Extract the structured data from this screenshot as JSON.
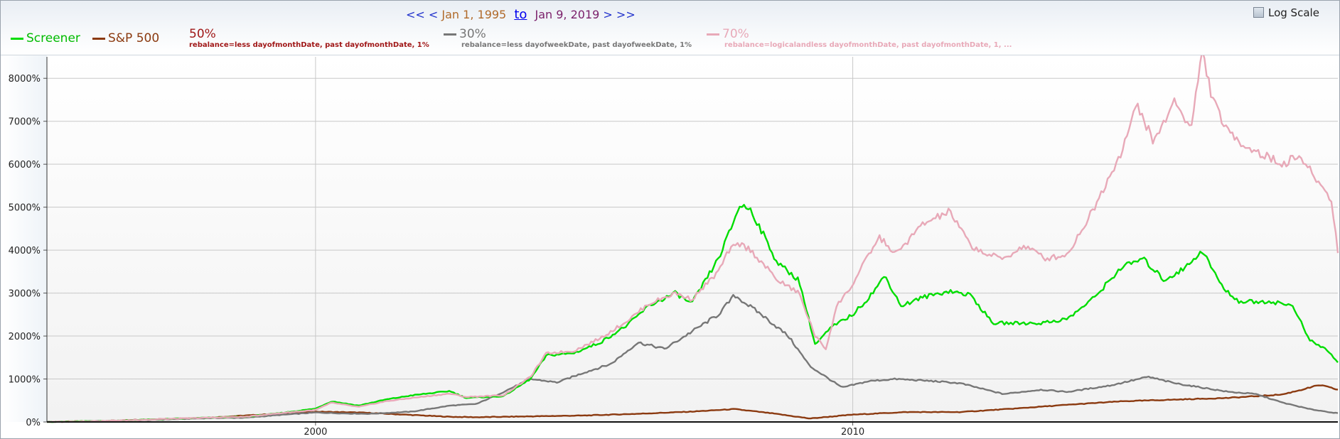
{
  "header": {
    "nav_prev_far": "<<",
    "nav_prev": "<",
    "start_date": "Jan 1, 1995",
    "to_label": "to",
    "end_date": "Jan 9, 2019",
    "nav_next": ">",
    "nav_next_far": ">>",
    "log_scale_label": "Log Scale",
    "log_scale_checked": false
  },
  "legend": [
    {
      "name": "Screener",
      "color": "#00dd00"
    },
    {
      "name": "S&P 500",
      "color": "#8b3a10"
    },
    {
      "name": "50%",
      "desc": "rebalance=less dayofmonthDate, past dayofmonthDate, 1%",
      "color": "#a01818"
    },
    {
      "name": "30%",
      "desc": "rebalance=less dayofweekDate, past dayofweekDate, 1%",
      "color": "#777777"
    },
    {
      "name": "70%",
      "desc": "rebalance=logicalandless dayofmonthDate, past dayofmonthDate, 1, ...",
      "color": "#e8a9b8"
    }
  ],
  "chart_data": {
    "type": "line",
    "xlim": [
      1995.0,
      2019.03
    ],
    "ylim": [
      0,
      8500
    ],
    "y_ticks": [
      "0%",
      "1000%",
      "2000%",
      "3000%",
      "4000%",
      "5000%",
      "6000%",
      "7000%",
      "8000%"
    ],
    "y_tick_values": [
      0,
      1000,
      2000,
      3000,
      4000,
      5000,
      6000,
      7000,
      8000
    ],
    "x_ticks": [
      "2000",
      "2010"
    ],
    "x_tick_values": [
      2000,
      2010
    ],
    "log_scale": false,
    "grid": true,
    "series": [
      {
        "name": "S&P 500",
        "color": "#8b3a10",
        "x": [
          1995.0,
          1996.0,
          1997.0,
          1998.0,
          1999.0,
          2000.0,
          2000.8,
          2001.5,
          2002.5,
          2003.0,
          2004.0,
          2005.0,
          2006.0,
          2007.0,
          2007.8,
          2008.5,
          2009.2,
          2010.0,
          2011.0,
          2012.0,
          2013.0,
          2014.0,
          2015.0,
          2016.0,
          2017.0,
          2018.0,
          2018.7,
          2019.03
        ],
        "y": [
          0,
          20,
          60,
          100,
          170,
          240,
          220,
          180,
          120,
          110,
          130,
          150,
          190,
          240,
          300,
          200,
          80,
          170,
          230,
          230,
          310,
          400,
          480,
          520,
          560,
          640,
          860,
          750
        ]
      },
      {
        "name": "30%",
        "color": "#777777",
        "x": [
          1995.0,
          1996.0,
          1997.0,
          1998.0,
          1998.7,
          1999.3,
          2000.0,
          2000.5,
          2001.0,
          2001.8,
          2002.5,
          2003.0,
          2003.5,
          2004.0,
          2004.5,
          2005.0,
          2005.5,
          2006.0,
          2006.5,
          2007.0,
          2007.5,
          2007.8,
          2008.3,
          2008.8,
          2009.2,
          2009.8,
          2010.3,
          2010.8,
          2011.5,
          2012.0,
          2012.8,
          2013.5,
          2014.0,
          2014.8,
          2015.5,
          2016.0,
          2016.5,
          2017.0,
          2017.5,
          2018.0,
          2018.5,
          2019.03
        ],
        "y": [
          0,
          20,
          50,
          90,
          100,
          160,
          220,
          200,
          190,
          240,
          380,
          420,
          700,
          1000,
          920,
          1150,
          1350,
          1850,
          1700,
          2100,
          2500,
          2950,
          2500,
          2000,
          1300,
          800,
          950,
          1000,
          950,
          900,
          650,
          750,
          700,
          850,
          1050,
          900,
          800,
          700,
          650,
          450,
          300,
          200
        ]
      },
      {
        "name": "Screener",
        "color": "#00dd00",
        "x": [
          1995.0,
          1996.0,
          1997.0,
          1998.0,
          1998.7,
          1999.3,
          2000.0,
          2000.3,
          2000.8,
          2001.3,
          2001.8,
          2002.5,
          2002.8,
          2003.5,
          2004.0,
          2004.3,
          2004.8,
          2005.3,
          2005.8,
          2006.2,
          2006.7,
          2007.0,
          2007.5,
          2007.7,
          2007.9,
          2008.1,
          2008.6,
          2009.0,
          2009.3,
          2009.6,
          2010.0,
          2010.3,
          2010.6,
          2010.9,
          2011.3,
          2011.8,
          2012.2,
          2012.6,
          2013.0,
          2013.5,
          2014.0,
          2014.5,
          2015.0,
          2015.4,
          2015.8,
          2016.2,
          2016.5,
          2016.9,
          2017.2,
          2017.8,
          2018.2,
          2018.5,
          2018.8,
          2019.03
        ],
        "y": [
          0,
          20,
          60,
          100,
          120,
          200,
          310,
          480,
          380,
          520,
          620,
          720,
          560,
          600,
          1000,
          1550,
          1600,
          1850,
          2250,
          2700,
          3000,
          2750,
          3800,
          4400,
          5050,
          4950,
          3700,
          3300,
          1800,
          2200,
          2500,
          2900,
          3400,
          2700,
          2900,
          3050,
          2950,
          2300,
          2300,
          2300,
          2400,
          2900,
          3600,
          3800,
          3300,
          3600,
          4000,
          3100,
          2800,
          2800,
          2700,
          1900,
          1700,
          1400
        ]
      },
      {
        "name": "70%",
        "color": "#e8a9b8",
        "x": [
          1995.0,
          1996.0,
          1997.0,
          1998.0,
          1998.7,
          1999.3,
          2000.0,
          2000.3,
          2000.8,
          2001.3,
          2001.8,
          2002.5,
          2002.8,
          2003.5,
          2004.0,
          2004.3,
          2004.8,
          2005.3,
          2005.8,
          2006.2,
          2006.7,
          2007.0,
          2007.5,
          2007.7,
          2007.9,
          2008.1,
          2008.6,
          2009.0,
          2009.3,
          2009.5,
          2009.7,
          2010.0,
          2010.3,
          2010.5,
          2010.8,
          2011.3,
          2011.8,
          2012.2,
          2012.5,
          2012.8,
          2013.2,
          2013.6,
          2014.0,
          2014.5,
          2015.0,
          2015.3,
          2015.6,
          2016.0,
          2016.3,
          2016.5,
          2016.7,
          2017.0,
          2017.5,
          2018.0,
          2018.3,
          2018.6,
          2018.9,
          2019.03
        ],
        "y": [
          0,
          20,
          60,
          100,
          120,
          200,
          280,
          450,
          350,
          480,
          560,
          660,
          580,
          620,
          1050,
          1600,
          1650,
          1950,
          2350,
          2750,
          3000,
          2850,
          3500,
          4000,
          4150,
          4000,
          3300,
          3000,
          2000,
          1700,
          2700,
          3200,
          3900,
          4300,
          3900,
          4600,
          4900,
          4100,
          3900,
          3800,
          4100,
          3800,
          3900,
          5000,
          6300,
          7400,
          6500,
          7500,
          6800,
          8650,
          7500,
          6700,
          6300,
          6000,
          6200,
          5700,
          5200,
          4000
        ]
      }
    ]
  }
}
